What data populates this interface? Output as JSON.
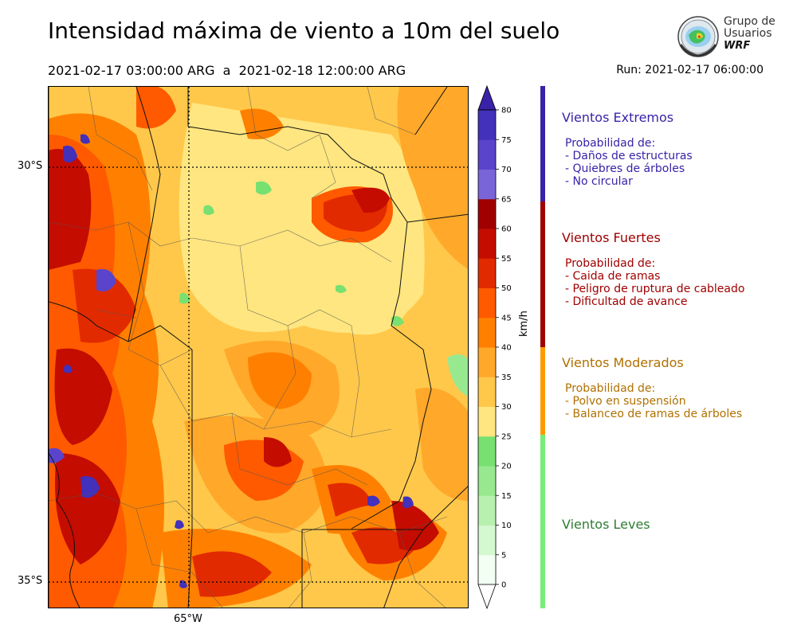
{
  "title": "Intensidad máxima de viento a 10m del suelo",
  "period": "2021-02-17 03:00:00 ARG  a  2021-02-18 12:00:00 ARG",
  "run": "Run: 2021-02-17 06:00:00",
  "logo": {
    "line1": "Grupo de",
    "line2": "Usuarios",
    "line3": "WRF"
  },
  "map": {
    "lat_labels": [
      "30°S",
      "35°S"
    ],
    "lon_labels": [
      "65°W"
    ]
  },
  "colorbar": {
    "unit": "km/h",
    "ticks": [
      "0",
      "5",
      "10",
      "15",
      "20",
      "25",
      "30",
      "35",
      "40",
      "45",
      "50",
      "55",
      "60",
      "65",
      "70",
      "75",
      "80"
    ],
    "colors": [
      "#f2fff2",
      "#d4f8d0",
      "#b8f0b0",
      "#98e890",
      "#77e070",
      "#ffe680",
      "#ffc84a",
      "#ffa82a",
      "#ff8000",
      "#ff5a00",
      "#e22a00",
      "#c40c00",
      "#a00000",
      "#7a65d8",
      "#5a44cc",
      "#4330bb",
      "#3a22a8"
    ],
    "accents": {
      "low": "#ffffff",
      "high": "#3a22a8"
    }
  },
  "categories": [
    {
      "title": "Vientos Extremos",
      "color": "#3a22a8",
      "desc": [
        "Probabilidad de:",
        "- Daños de estructuras",
        "- Quiebres de árboles",
        "- No circular"
      ]
    },
    {
      "title": "Vientos Fuertes",
      "color": "#a00000",
      "desc": [
        "Probabilidad de:",
        "- Caida de ramas",
        "- Peligro de ruptura de cableado",
        "- Dificultad de avance"
      ]
    },
    {
      "title": "Vientos Moderados",
      "color": "#b07000",
      "bar_color": "#ff9a00",
      "desc": [
        "Probabilidad de:",
        "- Polvo en suspensión",
        "- Balanceo de ramas de árboles"
      ]
    },
    {
      "title": "Vientos Leves",
      "color": "#2e7d32",
      "bar_color": "#77ee77",
      "desc": []
    }
  ]
}
